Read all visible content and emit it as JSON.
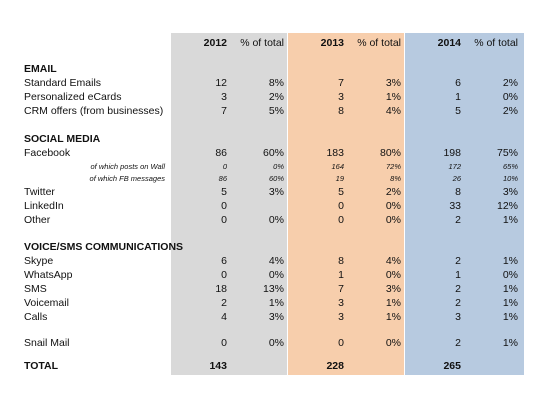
{
  "header": {
    "y2012": "2012",
    "p2012": "% of total",
    "y2013": "2013",
    "p2013": "% of total",
    "y2014": "2014",
    "p2014": "% of total"
  },
  "email": {
    "title": "EMAIL",
    "rows": [
      {
        "label": "Standard Emails",
        "v2012": "12",
        "p2012": "8%",
        "v2013": "7",
        "p2013": "3%",
        "v2014": "6",
        "p2014": "2%"
      },
      {
        "label": "Personalized eCards",
        "v2012": "3",
        "p2012": "2%",
        "v2013": "3",
        "p2013": "1%",
        "v2014": "1",
        "p2014": "0%"
      },
      {
        "label": "CRM offers (from businesses)",
        "v2012": "7",
        "p2012": "5%",
        "v2013": "8",
        "p2013": "4%",
        "v2014": "5",
        "p2014": "2%"
      }
    ]
  },
  "social": {
    "title": "SOCIAL MEDIA",
    "facebook": {
      "label": "Facebook",
      "v2012": "86",
      "p2012": "60%",
      "v2013": "183",
      "p2013": "80%",
      "v2014": "198",
      "p2014": "75%"
    },
    "wall": {
      "label": "of which posts on Wall",
      "v2012": "0",
      "p2012": "0%",
      "v2013": "164",
      "p2013": "72%",
      "v2014": "172",
      "p2014": "65%"
    },
    "fbmsg": {
      "label": "of which FB messages",
      "v2012": "86",
      "p2012": "60%",
      "v2013": "19",
      "p2013": "8%",
      "v2014": "26",
      "p2014": "10%"
    },
    "twitter": {
      "label": "Twitter",
      "v2012": "5",
      "p2012": "3%",
      "v2013": "5",
      "p2013": "2%",
      "v2014": "8",
      "p2014": "3%"
    },
    "linkedin": {
      "label": "LinkedIn",
      "v2012": "0",
      "p2012": "",
      "v2013": "0",
      "p2013": "0%",
      "v2014": "33",
      "p2014": "12%"
    },
    "other": {
      "label": "Other",
      "v2012": "0",
      "p2012": "0%",
      "v2013": "0",
      "p2013": "0%",
      "v2014": "2",
      "p2014": "1%"
    }
  },
  "voice": {
    "title": "VOICE/SMS COMMUNICATIONS",
    "rows": [
      {
        "label": "Skype",
        "v2012": "6",
        "p2012": "4%",
        "v2013": "8",
        "p2013": "4%",
        "v2014": "2",
        "p2014": "1%"
      },
      {
        "label": "WhatsApp",
        "v2012": "0",
        "p2012": "0%",
        "v2013": "1",
        "p2013": "0%",
        "v2014": "1",
        "p2014": "0%"
      },
      {
        "label": "SMS",
        "v2012": "18",
        "p2012": "13%",
        "v2013": "7",
        "p2013": "3%",
        "v2014": "2",
        "p2014": "1%"
      },
      {
        "label": "Voicemail",
        "v2012": "2",
        "p2012": "1%",
        "v2013": "3",
        "p2013": "1%",
        "v2014": "2",
        "p2014": "1%"
      },
      {
        "label": "Calls",
        "v2012": "4",
        "p2012": "3%",
        "v2013": "3",
        "p2013": "1%",
        "v2014": "3",
        "p2014": "1%"
      }
    ]
  },
  "snail": {
    "label": "Snail Mail",
    "v2012": "0",
    "p2012": "0%",
    "v2013": "0",
    "p2013": "0%",
    "v2014": "2",
    "p2014": "1%"
  },
  "total": {
    "label": "TOTAL",
    "v2012": "143",
    "v2013": "228",
    "v2014": "265"
  }
}
